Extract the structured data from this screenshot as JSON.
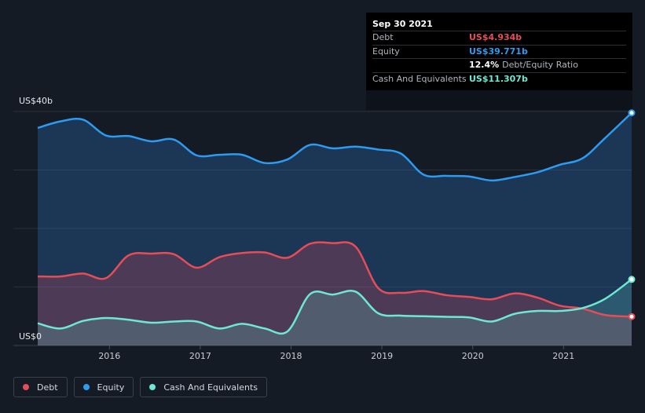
{
  "tooltip": {
    "date": "Sep 30 2021",
    "rows": {
      "debt": {
        "label": "Debt",
        "value": "US$4.934b",
        "color": "#e64d58"
      },
      "equity": {
        "label": "Equity",
        "value": "US$39.771b",
        "color": "#2d9bf0"
      },
      "ratio": {
        "value": "12.4%",
        "label": "Debt/Equity Ratio"
      },
      "cash": {
        "label": "Cash And Equivalents",
        "value": "US$11.307b",
        "color": "#6ee8d5"
      }
    }
  },
  "chart_data": {
    "type": "area",
    "y_axis_labels": {
      "top": "US$40b",
      "bottom": "US$0"
    },
    "ylim": [
      0,
      40
    ],
    "xlim": [
      2015.21,
      2021.75
    ],
    "x_ticks": [
      "2016",
      "2017",
      "2018",
      "2019",
      "2020",
      "2021"
    ],
    "gridlines": [
      0,
      10,
      20,
      30,
      40
    ],
    "legend": [
      "Debt",
      "Equity",
      "Cash And Equivalents"
    ],
    "legend_position": "bottom-left",
    "series": [
      {
        "name": "Equity",
        "color": "#2d9bf0",
        "x": [
          2015.21,
          2015.46,
          2015.71,
          2015.96,
          2016.21,
          2016.46,
          2016.71,
          2016.96,
          2017.21,
          2017.46,
          2017.71,
          2017.96,
          2018.21,
          2018.46,
          2018.71,
          2018.96,
          2019.21,
          2019.46,
          2019.71,
          2019.96,
          2020.21,
          2020.46,
          2020.71,
          2020.96,
          2021.21,
          2021.46,
          2021.75
        ],
        "values": [
          37.2,
          38.3,
          38.6,
          35.9,
          35.8,
          34.9,
          35.2,
          32.5,
          32.6,
          32.6,
          31.2,
          31.8,
          34.3,
          33.7,
          34.0,
          33.5,
          32.8,
          29.2,
          29.0,
          28.9,
          28.2,
          28.8,
          29.6,
          30.9,
          32.0,
          35.5,
          39.771
        ]
      },
      {
        "name": "Debt",
        "color": "#e64d58",
        "x": [
          2015.21,
          2015.46,
          2015.71,
          2015.96,
          2016.21,
          2016.46,
          2016.71,
          2016.96,
          2017.21,
          2017.46,
          2017.71,
          2017.96,
          2018.21,
          2018.46,
          2018.71,
          2018.96,
          2019.21,
          2019.46,
          2019.71,
          2019.96,
          2020.21,
          2020.46,
          2020.71,
          2020.96,
          2021.21,
          2021.46,
          2021.75
        ],
        "values": [
          11.8,
          11.8,
          12.3,
          11.5,
          15.4,
          15.7,
          15.6,
          13.3,
          15.1,
          15.8,
          15.9,
          15.0,
          17.4,
          17.5,
          16.9,
          9.8,
          9.0,
          9.3,
          8.6,
          8.3,
          7.9,
          8.9,
          8.2,
          6.8,
          6.3,
          5.2,
          4.934
        ]
      },
      {
        "name": "Cash And Equivalents",
        "color": "#6ee8d5",
        "x": [
          2015.21,
          2015.46,
          2015.71,
          2015.96,
          2016.21,
          2016.46,
          2016.71,
          2016.96,
          2017.21,
          2017.46,
          2017.71,
          2017.96,
          2018.21,
          2018.46,
          2018.71,
          2018.96,
          2019.21,
          2019.46,
          2019.71,
          2019.96,
          2020.21,
          2020.46,
          2020.71,
          2020.96,
          2021.21,
          2021.46,
          2021.75
        ],
        "values": [
          3.8,
          2.9,
          4.2,
          4.7,
          4.4,
          3.9,
          4.1,
          4.1,
          2.9,
          3.7,
          2.9,
          2.4,
          8.8,
          8.7,
          9.2,
          5.5,
          5.1,
          5.0,
          4.9,
          4.8,
          4.1,
          5.4,
          5.9,
          5.9,
          6.4,
          8.0,
          11.307
        ]
      }
    ]
  }
}
